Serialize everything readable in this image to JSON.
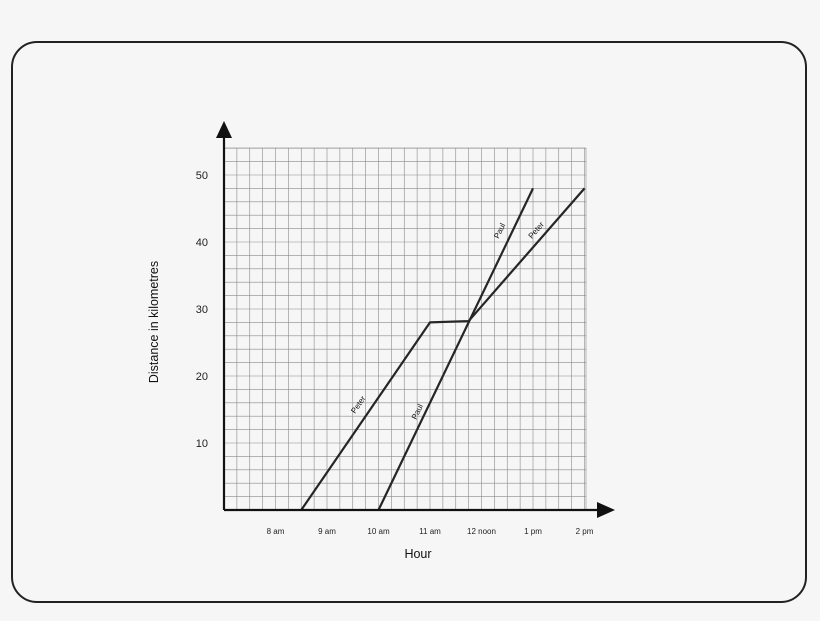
{
  "chart_data": {
    "type": "line",
    "xlabel": "Hour",
    "ylabel": "Distance in kilometres",
    "x_tick_labels": [
      "8 am",
      "9 am",
      "10 am",
      "11 am",
      "12 noon",
      "1 pm",
      "2 pm"
    ],
    "x_tick_values": [
      8,
      9,
      10,
      11,
      12,
      13,
      14
    ],
    "y_tick_values": [
      10,
      20,
      30,
      40,
      50
    ],
    "xlim": [
      7,
      14.5
    ],
    "ylim": [
      0,
      54
    ],
    "grid": true,
    "series": [
      {
        "name": "Peter",
        "points": [
          [
            8.5,
            0
          ],
          [
            11,
            28
          ],
          [
            11.75,
            28.2
          ],
          [
            14,
            48
          ]
        ]
      },
      {
        "name": "Paul",
        "points": [
          [
            10,
            0
          ],
          [
            13,
            48
          ]
        ]
      }
    ],
    "line_labels": [
      {
        "text": "Peter",
        "series": "Peter",
        "x": 9.65,
        "y": 15.5
      },
      {
        "text": "Paul",
        "series": "Paul",
        "x": 10.8,
        "y": 14.5
      },
      {
        "text": "Paul",
        "series": "Paul",
        "x": 12.4,
        "y": 41.5
      },
      {
        "text": "Peter",
        "series": "Peter",
        "x": 13.1,
        "y": 41.5
      }
    ],
    "colors": {
      "line": "#262626",
      "grid": "#8a8a8a",
      "axis": "#111111"
    }
  }
}
